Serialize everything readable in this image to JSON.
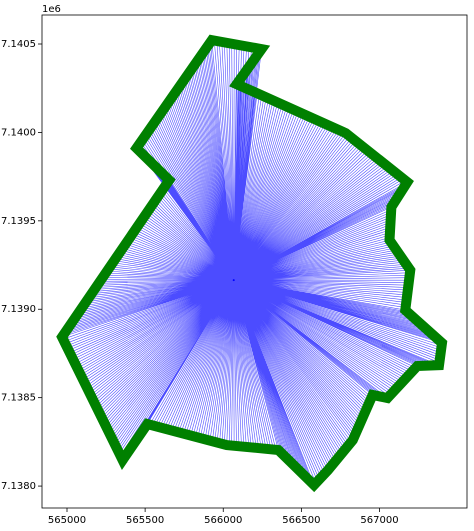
{
  "chart_data": {
    "type": "polygon",
    "x": [
      565927,
      566245,
      566086,
      566784,
      567178,
      567076,
      567064,
      567197,
      567165,
      567400,
      567381,
      567242,
      567051,
      566956,
      566829,
      566670,
      566581,
      566353,
      566022,
      565514,
      565356,
      564968,
      565654,
      565445
    ],
    "y": [
      7140522,
      7140471,
      7140273,
      7139996,
      7139719,
      7139578,
      7139391,
      7139221,
      7138995,
      7138809,
      7138684,
      7138679,
      7138498,
      7138515,
      7138260,
      7138090,
      7138006,
      7138204,
      7138232,
      7138351,
      7138147,
      7138843,
      7139730,
      7139911
    ],
    "center": {
      "x": 566067,
      "y": 7139165
    },
    "outline_color": "green",
    "ray_color": "blue",
    "xlim": [
      564840,
      567560
    ],
    "ylim": [
      7137876,
      7140664
    ],
    "xticks": [
      565000,
      565500,
      566000,
      566500,
      567000
    ],
    "yticks": [
      {
        "value": 7138000,
        "label": "7.1380"
      },
      {
        "value": 7138500,
        "label": "7.1385"
      },
      {
        "value": 7139000,
        "label": "7.1390"
      },
      {
        "value": 7139500,
        "label": "7.1395"
      },
      {
        "value": 7140000,
        "label": "7.1400"
      },
      {
        "value": 7140500,
        "label": "7.1405"
      }
    ],
    "y_offset_label": "1e6"
  }
}
